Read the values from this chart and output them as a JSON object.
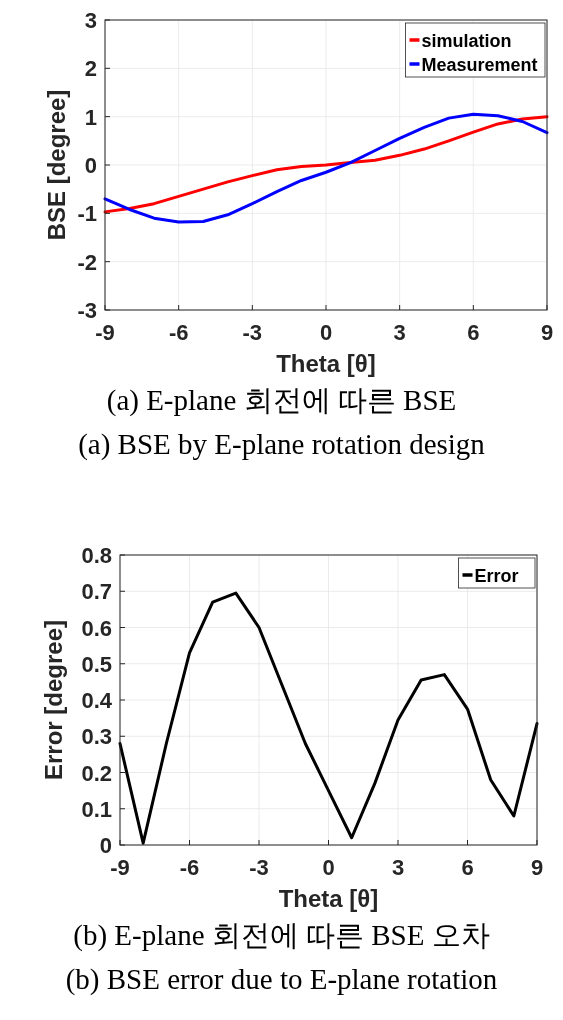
{
  "chart_data": [
    {
      "type": "line",
      "xlabel": "Theta [θ]",
      "ylabel": "BSE [degree]",
      "x": [
        -9,
        -8,
        -7,
        -6,
        -5,
        -4,
        -3,
        -2,
        -1,
        0,
        1,
        2,
        3,
        4,
        5,
        6,
        7,
        8,
        9
      ],
      "xlim": [
        -9,
        9
      ],
      "xticks": [
        -9,
        -6,
        -3,
        0,
        3,
        6,
        9
      ],
      "ylim": [
        -3,
        3
      ],
      "yticks": [
        -3,
        -2,
        -1,
        0,
        1,
        2,
        3
      ],
      "grid": true,
      "legend": "top right",
      "series": [
        {
          "name": "simulation",
          "color": "#ff0000",
          "values": [
            -0.97,
            -0.9,
            -0.8,
            -0.65,
            -0.5,
            -0.35,
            -0.22,
            -0.1,
            -0.03,
            0.0,
            0.05,
            0.1,
            0.2,
            0.33,
            0.5,
            0.68,
            0.85,
            0.95,
            1.0
          ]
        },
        {
          "name": "Measurement",
          "color": "#0000ff",
          "values": [
            -0.7,
            -0.92,
            -1.1,
            -1.18,
            -1.17,
            -1.03,
            -0.8,
            -0.55,
            -0.32,
            -0.15,
            0.05,
            0.3,
            0.55,
            0.78,
            0.97,
            1.05,
            1.02,
            0.9,
            0.67
          ]
        }
      ],
      "annotations": [
        "(a) E-plane 회전에 따른 BSE",
        "(a) BSE by E-plane rotation design"
      ]
    },
    {
      "type": "line",
      "xlabel": "Theta [θ]",
      "ylabel": "Error [degree]",
      "x": [
        -9,
        -8,
        -7,
        -6,
        -5,
        -4,
        -3,
        -2,
        -1,
        0,
        1,
        2,
        3,
        4,
        5,
        6,
        7,
        8,
        9
      ],
      "xlim": [
        -9,
        9
      ],
      "xticks": [
        -9,
        -6,
        -3,
        0,
        3,
        6,
        9
      ],
      "ylim": [
        0,
        0.8
      ],
      "yticks": [
        0,
        0.1,
        0.2,
        0.3,
        0.4,
        0.5,
        0.6,
        0.7,
        0.8
      ],
      "grid": true,
      "legend": "top right",
      "series": [
        {
          "name": "Error",
          "color": "#000000",
          "values": [
            0.28,
            0.005,
            0.28,
            0.53,
            0.67,
            0.695,
            0.6,
            0.44,
            0.28,
            0.15,
            0.02,
            0.17,
            0.345,
            0.455,
            0.47,
            0.375,
            0.18,
            0.08,
            0.335
          ]
        }
      ],
      "annotations": [
        "(b) E-plane 회전에 따른 BSE 오차",
        "(b) BSE error due to E-plane rotation"
      ]
    }
  ]
}
